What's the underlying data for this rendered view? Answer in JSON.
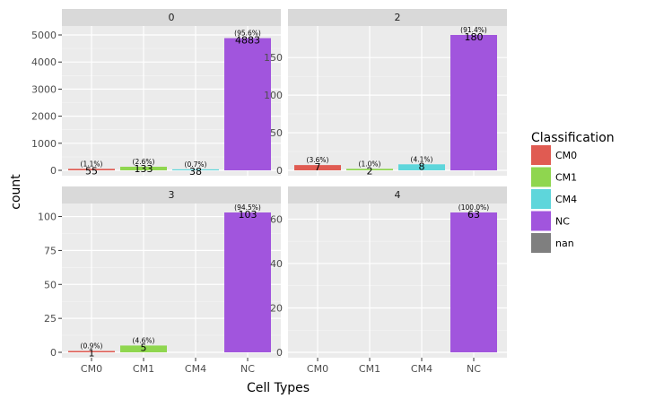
{
  "chart_data": {
    "type": "bar",
    "facet_by": "cluster",
    "categories": [
      "CM0",
      "CM1",
      "CM4",
      "NC"
    ],
    "xlabel": "Cell Types",
    "ylabel": "count",
    "legend": {
      "title": "Classification",
      "position": "right",
      "entries": [
        {
          "label": "CM0",
          "color": "#e05b52"
        },
        {
          "label": "CM1",
          "color": "#8fd64f"
        },
        {
          "label": "CM4",
          "color": "#5ed6db"
        },
        {
          "label": "NC",
          "color": "#a155dd"
        },
        {
          "label": "nan",
          "color": "#7f7f7f"
        }
      ]
    },
    "facets": [
      {
        "title": "0",
        "ylim": [
          0,
          5000
        ],
        "yticks": [
          0,
          1000,
          2000,
          3000,
          4000,
          5000
        ],
        "bars": [
          {
            "category": "CM0",
            "value": 55,
            "label": "55",
            "pct": "(1.1%)"
          },
          {
            "category": "CM1",
            "value": 133,
            "label": "133",
            "pct": "(2.6%)"
          },
          {
            "category": "CM4",
            "value": 38,
            "label": "38",
            "pct": "(0.7%)"
          },
          {
            "category": "NC",
            "value": 4883,
            "label": "4883",
            "pct": "(95.6%)"
          }
        ]
      },
      {
        "title": "2",
        "ylim": [
          0,
          180
        ],
        "yticks": [
          0,
          50,
          100,
          150
        ],
        "bars": [
          {
            "category": "CM0",
            "value": 7,
            "label": "7",
            "pct": "(3.6%)"
          },
          {
            "category": "CM1",
            "value": 2,
            "label": "2",
            "pct": "(1.0%)"
          },
          {
            "category": "CM4",
            "value": 8,
            "label": "8",
            "pct": "(4.1%)"
          },
          {
            "category": "NC",
            "value": 180,
            "label": "180",
            "pct": "(91.4%)"
          }
        ]
      },
      {
        "title": "3",
        "ylim": [
          0,
          103
        ],
        "yticks": [
          0,
          25,
          50,
          75,
          100
        ],
        "bars": [
          {
            "category": "CM0",
            "value": 1,
            "label": "1",
            "pct": "(0.9%)"
          },
          {
            "category": "CM1",
            "value": 5,
            "label": "5",
            "pct": "(4.6%)"
          },
          {
            "category": "NC",
            "value": 103,
            "label": "103",
            "pct": "(94.5%)"
          }
        ]
      },
      {
        "title": "4",
        "ylim": [
          0,
          63
        ],
        "yticks": [
          0,
          20,
          40,
          60
        ],
        "bars": [
          {
            "category": "NC",
            "value": 63,
            "label": "63",
            "pct": "(100.0%)"
          }
        ]
      }
    ]
  }
}
